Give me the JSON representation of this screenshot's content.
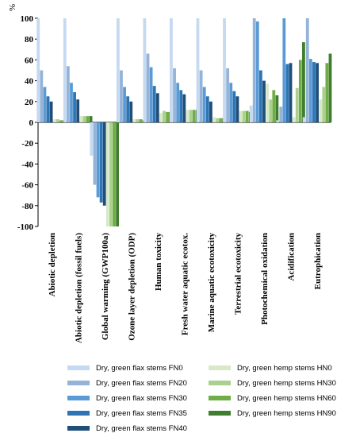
{
  "chart_data": {
    "type": "bar",
    "ylabel": "%",
    "ylim": [
      -100,
      100
    ],
    "yticks": [
      -100,
      -80,
      -60,
      -40,
      -20,
      0,
      20,
      40,
      60,
      80,
      100
    ],
    "categories": [
      "Abiotic depletion",
      "Abiotic depletion (fossil fuels)",
      "Global warming (GWP100a)",
      "Ozone layer depletion (ODP)",
      "Human toxicity",
      "Fresh water aquatic ecotox.",
      "Marine aquatic ecotoxicity",
      "Terrestrial ecotoxicity",
      "Photochemical oxidation",
      "Acidification",
      "Eutrophication"
    ],
    "series": [
      {
        "name": "Dry, green flax stems FN0",
        "color": "#c5d9f1",
        "values": [
          100,
          100,
          -32,
          100,
          100,
          100,
          100,
          100,
          16,
          2,
          5
        ]
      },
      {
        "name": "Dry, green flax stems FN20",
        "color": "#95b3d7",
        "values": [
          50,
          54,
          -60,
          50,
          66,
          52,
          50,
          52,
          100,
          15,
          100
        ]
      },
      {
        "name": "Dry, green flax stems FN30",
        "color": "#5b9bd5",
        "values": [
          34,
          38,
          -72,
          34,
          53,
          38,
          34,
          38,
          97,
          100,
          61
        ]
      },
      {
        "name": "Dry, green flax stems FN35",
        "color": "#2e75b6",
        "values": [
          25,
          29,
          -77,
          25,
          35,
          31,
          25,
          30,
          50,
          56,
          58
        ]
      },
      {
        "name": "Dry, green flax stems FN40",
        "color": "#1f4e79",
        "values": [
          20,
          22,
          -80,
          20,
          28,
          27,
          20,
          25,
          40,
          57,
          57
        ]
      },
      {
        "name": "Dry, green hemp stems HN0",
        "color": "#d8e9c8",
        "values": [
          3,
          6,
          -100,
          3,
          9,
          12,
          5,
          11,
          37,
          5,
          22
        ]
      },
      {
        "name": "Dry, green hemp stems HN30",
        "color": "#a9d08e",
        "values": [
          3,
          6,
          -100,
          3,
          11,
          12,
          4,
          11,
          22,
          33,
          34
        ]
      },
      {
        "name": "Dry, green hemp stems HN60",
        "color": "#70ad47",
        "values": [
          2,
          6,
          -100,
          3,
          10,
          12,
          4,
          11,
          31,
          60,
          57
        ]
      },
      {
        "name": "Dry, green hemp stems HN90",
        "color": "#3e7e2e",
        "values": [
          2,
          6,
          -100,
          2,
          10,
          12,
          4,
          10,
          26,
          77,
          66
        ]
      }
    ],
    "legend": {
      "placement": "bottom",
      "left_column": [
        "Dry, green flax stems FN0",
        "Dry, green flax stems FN20",
        "Dry, green flax stems FN30",
        "Dry, green flax stems FN35",
        "Dry, green flax stems FN40"
      ],
      "right_column": [
        "Dry, green hemp stems HN0",
        "Dry, green hemp stems HN30",
        "Dry, green hemp stems HN60",
        "Dry, green hemp stems HN90"
      ]
    }
  }
}
